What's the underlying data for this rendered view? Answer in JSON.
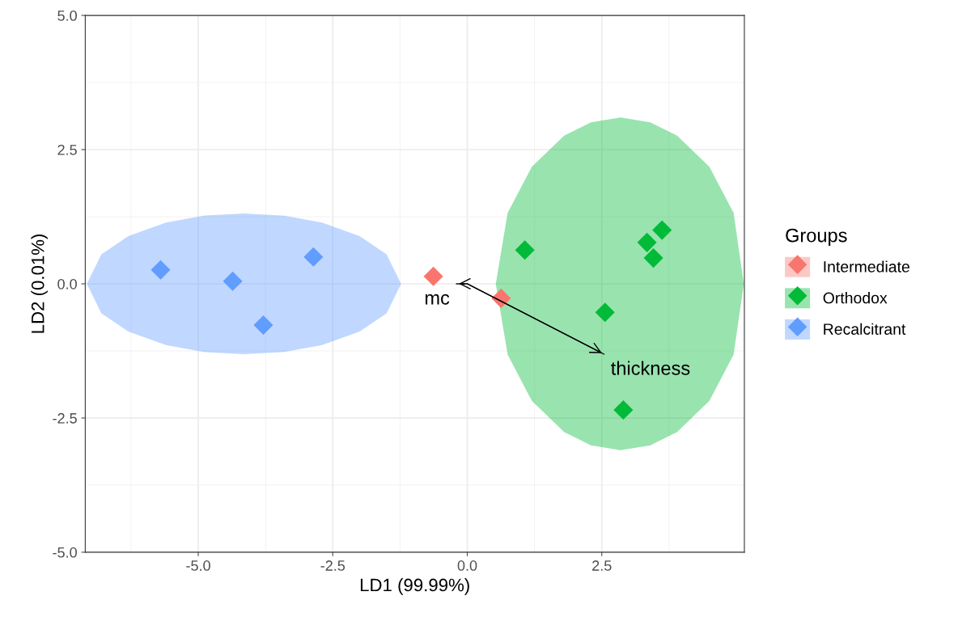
{
  "chart_data": {
    "type": "scatter",
    "xlabel": "LD1 (99.99%)",
    "ylabel": "LD2 (0.01%)",
    "legend_title": "Groups",
    "legend": "right",
    "grid": true,
    "xlim": [
      -7.1,
      5.15
    ],
    "ylim": [
      -5.0,
      5.0
    ],
    "xticks": [
      {
        "value": -5.0,
        "label": "-5.0"
      },
      {
        "value": -2.5,
        "label": "-2.5"
      },
      {
        "value": 0.0,
        "label": "0.0"
      },
      {
        "value": 2.5,
        "label": "2.5"
      }
    ],
    "yticks": [
      {
        "value": -5.0,
        "label": "-5.0"
      },
      {
        "value": -2.5,
        "label": "-2.5"
      },
      {
        "value": 0.0,
        "label": "0.0"
      },
      {
        "value": 2.5,
        "label": "2.5"
      },
      {
        "value": 5.0,
        "label": "5.0"
      }
    ],
    "series": [
      {
        "type": "area",
        "color": "#619cff",
        "x": [
          -7.07,
          -6.8,
          -6.3,
          -5.6,
          -4.9,
          -4.15,
          -3.4,
          -2.7,
          -2.0,
          -1.5,
          -1.23,
          -1.5,
          -2.0,
          -2.7,
          -3.4,
          -4.15,
          -4.9,
          -5.6,
          -6.3,
          -6.8
        ],
        "values": [
          0,
          0.55,
          0.89,
          1.14,
          1.27,
          1.31,
          1.27,
          1.14,
          0.89,
          0.55,
          0,
          -0.55,
          -0.89,
          -1.14,
          -1.27,
          -1.31,
          -1.27,
          -1.14,
          -0.89,
          -0.55
        ]
      },
      {
        "type": "area",
        "color": "#00ba38",
        "x": [
          0.53,
          0.75,
          1.2,
          1.8,
          2.3,
          2.85,
          3.4,
          3.9,
          4.5,
          4.95,
          5.14,
          4.95,
          4.5,
          3.9,
          3.4,
          2.85,
          2.3,
          1.8,
          1.2,
          0.75
        ],
        "values": [
          0,
          1.32,
          2.18,
          2.76,
          3.01,
          3.1,
          3.01,
          2.76,
          2.18,
          1.32,
          0,
          -1.32,
          -2.18,
          -2.76,
          -3.01,
          -3.1,
          -3.01,
          -2.76,
          -2.18,
          -1.32
        ]
      },
      {
        "name": "Intermediate",
        "marker": "diamond",
        "color": "#f8766d",
        "x": [
          -0.63,
          0.63
        ],
        "values": [
          0.14,
          -0.27
        ]
      },
      {
        "name": "Orthodox",
        "marker": "diamond",
        "color": "#00ba38",
        "x": [
          1.07,
          2.56,
          3.34,
          3.62,
          3.46,
          2.9
        ],
        "values": [
          0.63,
          -0.53,
          0.77,
          1.0,
          0.48,
          -2.35
        ]
      },
      {
        "name": "Recalcitrant",
        "marker": "diamond",
        "color": "#619cff",
        "x": [
          -5.7,
          -4.36,
          -3.79,
          -2.86
        ],
        "values": [
          0.26,
          0.05,
          -0.77,
          0.5
        ]
      },
      {
        "name": "mc",
        "type": "line",
        "color": "#000000",
        "x": [
          0.0,
          -0.2
        ],
        "values": [
          0.0,
          0.0
        ]
      },
      {
        "name": "thickness",
        "type": "line",
        "color": "#000000",
        "x": [
          0.0,
          2.54
        ],
        "values": [
          0.0,
          -1.31
        ]
      }
    ]
  }
}
